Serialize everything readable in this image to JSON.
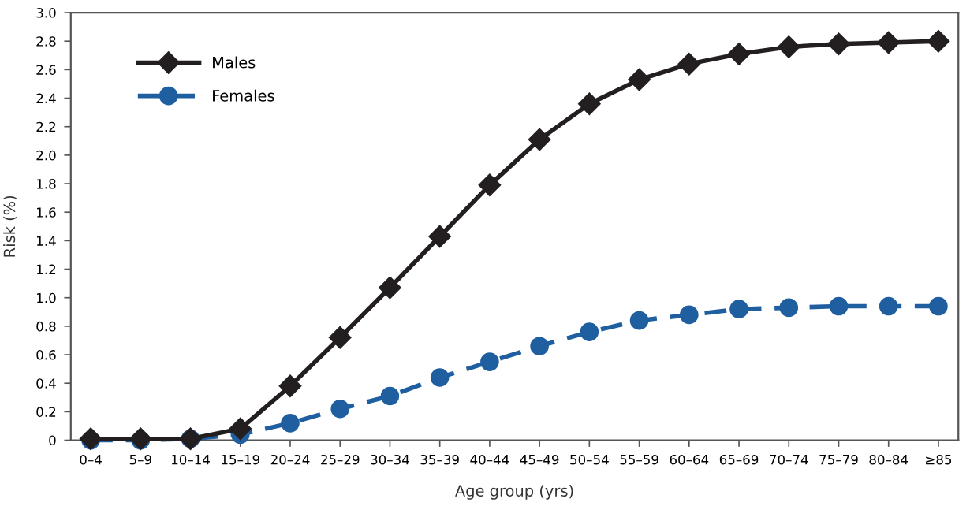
{
  "chart_data": {
    "type": "line",
    "xlabel": "Age group (yrs)",
    "ylabel": "Risk (%)",
    "categories": [
      "0–4",
      "5–9",
      "10–14",
      "15–19",
      "20–24",
      "25–29",
      "30–34",
      "35–39",
      "40–44",
      "45–49",
      "50–54",
      "55–59",
      "60–64",
      "65–69",
      "70–74",
      "75–79",
      "80–84",
      "≥85"
    ],
    "series": [
      {
        "name": "Males",
        "color": "#231f20",
        "marker": "diamond",
        "line_style": "solid",
        "values": [
          0.01,
          0.01,
          0.01,
          0.08,
          0.38,
          0.72,
          1.07,
          1.43,
          1.79,
          2.11,
          2.36,
          2.53,
          2.64,
          2.71,
          2.76,
          2.78,
          2.79,
          2.8
        ]
      },
      {
        "name": "Females",
        "color": "#1f5fa0",
        "marker": "circle",
        "line_style": "dashed",
        "values": [
          0.0,
          0.0,
          0.01,
          0.04,
          0.12,
          0.22,
          0.31,
          0.44,
          0.55,
          0.66,
          0.76,
          0.84,
          0.88,
          0.92,
          0.93,
          0.94,
          0.94,
          0.94
        ]
      }
    ],
    "ylim": [
      0,
      3.0
    ],
    "yticks": [
      0,
      {
        "value": 0.2,
        "label": "0.2"
      },
      {
        "value": 0.4,
        "label": "0.4"
      },
      {
        "value": 0.6,
        "label": "0.6"
      },
      {
        "value": 0.8,
        "label": "0.8"
      },
      {
        "value": 1.0,
        "label": "1.0"
      },
      {
        "value": 1.2,
        "label": "1.2"
      },
      {
        "value": 1.4,
        "label": "1.4"
      },
      {
        "value": 1.6,
        "label": "1.6"
      },
      {
        "value": 1.8,
        "label": "1.8"
      },
      {
        "value": 2.0,
        "label": "2.0"
      },
      {
        "value": 2.2,
        "label": "2.2"
      },
      {
        "value": 2.4,
        "label": "2.4"
      },
      {
        "value": 2.6,
        "label": "2.6"
      },
      {
        "value": 2.8,
        "label": "2.8"
      },
      {
        "value": 3.0,
        "label": "3.0"
      }
    ],
    "grid": false,
    "legend": "top left"
  }
}
